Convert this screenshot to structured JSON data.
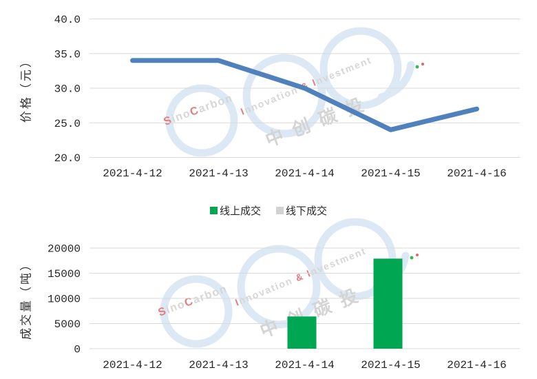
{
  "colors": {
    "grid": "#d9d9d9",
    "axis_text": "#262626",
    "line": "#4f81bd",
    "bar_online": "#00a651",
    "bar_offline": "#d2d2d2"
  },
  "legend": {
    "items": [
      {
        "label": "线上成交",
        "color": "#00a651"
      },
      {
        "label": "线下成交",
        "color": "#d2d2d2"
      }
    ]
  },
  "watermark": {
    "brand_line1_segments": [
      {
        "t": "S",
        "accent": true
      },
      {
        "t": "ino",
        "accent": false
      },
      {
        "t": "C",
        "accent": true
      },
      {
        "t": "arbon",
        "accent": false
      }
    ],
    "brand_line2_segments": [
      {
        "t": "I",
        "accent": true
      },
      {
        "t": "nnovation ",
        "accent": false
      },
      {
        "t": "&",
        "accent": true
      },
      {
        "t": " ",
        "accent": false
      },
      {
        "t": "I",
        "accent": true
      },
      {
        "t": "nvestment",
        "accent": false
      }
    ],
    "brand_cn": "中 创 碳 投",
    "colors": {
      "ring": "#dce9f5",
      "text": "#d6d6d6",
      "accent": "#e57d7d",
      "cn": "#d4d4d4",
      "dot_green": "#3cb45a",
      "dot_red": "#e06666"
    }
  },
  "chart_data": [
    {
      "type": "line",
      "title": "",
      "ylabel": "价格（元）",
      "xlabel": "",
      "categories": [
        "2021-4-12",
        "2021-4-13",
        "2021-4-14",
        "2021-4-15",
        "2021-4-16"
      ],
      "series": [
        {
          "name": "价格",
          "color": "#4f81bd",
          "values": [
            34,
            34,
            30,
            24,
            27
          ]
        }
      ],
      "ylim": [
        20,
        40
      ],
      "yticks": [
        {
          "v": 40,
          "label": "40.0"
        },
        {
          "v": 35,
          "label": "35.0"
        },
        {
          "v": 30,
          "label": "30.0"
        },
        {
          "v": 25,
          "label": "25.0"
        },
        {
          "v": 20,
          "label": "20.0"
        }
      ],
      "grid": true,
      "legend_position": "none"
    },
    {
      "type": "bar",
      "title": "",
      "ylabel": "成交量（吨）",
      "xlabel": "",
      "categories": [
        "2021-4-12",
        "2021-4-13",
        "2021-4-14",
        "2021-4-15",
        "2021-4-16"
      ],
      "series": [
        {
          "name": "线上成交",
          "color": "#00a651",
          "values": [
            0,
            0,
            6400,
            17900,
            0
          ]
        },
        {
          "name": "线下成交",
          "color": "#d2d2d2",
          "values": [
            0,
            0,
            0,
            0,
            0
          ]
        }
      ],
      "ylim": [
        0,
        20000
      ],
      "yticks": [
        {
          "v": 20000,
          "label": "20000"
        },
        {
          "v": 15000,
          "label": "15000"
        },
        {
          "v": 10000,
          "label": "10000"
        },
        {
          "v": 5000,
          "label": "5000"
        },
        {
          "v": 0,
          "label": "0"
        }
      ],
      "grid": true,
      "legend_position": "top"
    }
  ]
}
